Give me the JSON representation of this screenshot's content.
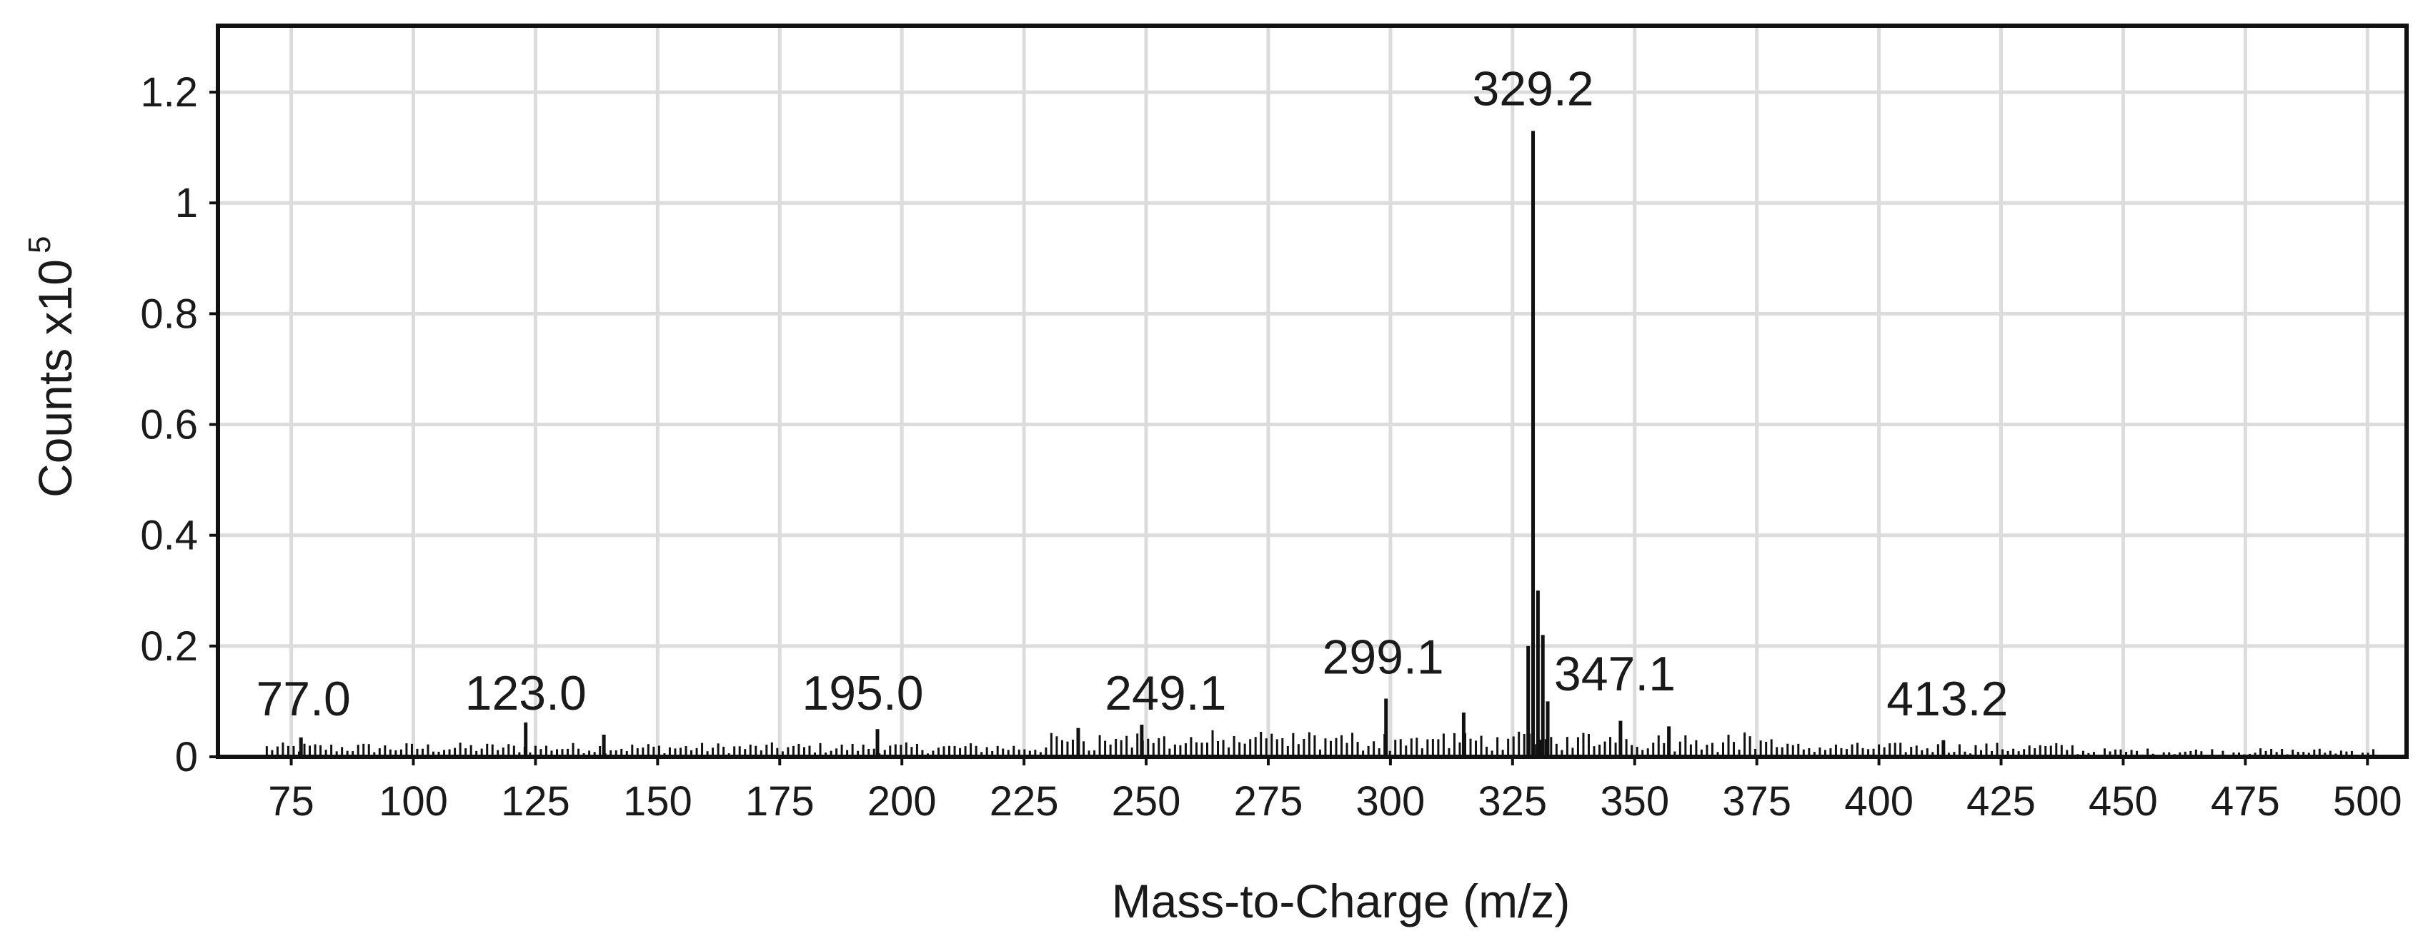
{
  "chart_data": {
    "type": "bar",
    "title": "",
    "xlabel": "Mass-to-Charge (m/z)",
    "ylabel": "Counts x10",
    "ylabel_exponent": "5",
    "xlim": [
      60,
      508
    ],
    "ylim": [
      0,
      1.32
    ],
    "x_ticks": [
      "75",
      "100",
      "125",
      "150",
      "175",
      "200",
      "225",
      "250",
      "275",
      "300",
      "325",
      "350",
      "375",
      "400",
      "425",
      "450",
      "475",
      "500"
    ],
    "y_ticks": [
      "0",
      "0.2",
      "0.4",
      "0.6",
      "0.8",
      "1",
      "1.2"
    ],
    "grid": true,
    "series": [
      {
        "x": [
          77.0,
          123.0,
          139.0,
          195.0,
          236.1,
          249.1,
          299.1,
          315.0,
          328.2,
          329.2,
          330.2,
          331.2,
          332.2,
          347.1,
          357.0,
          413.2
        ],
        "y": [
          0.035,
          0.062,
          0.04,
          0.05,
          0.052,
          0.058,
          0.105,
          0.08,
          0.2,
          1.13,
          0.3,
          0.22,
          0.1,
          0.065,
          0.055,
          0.03
        ]
      }
    ],
    "annotations": [
      {
        "text": "77.0",
        "x": 77.0,
        "y": 0.035
      },
      {
        "text": "123.0",
        "x": 123.0,
        "y": 0.062
      },
      {
        "text": "195.0",
        "x": 195.0,
        "y": 0.05
      },
      {
        "text": "249.1",
        "x": 249.1,
        "y": 0.058
      },
      {
        "text": "299.1",
        "x": 299.1,
        "y": 0.105
      },
      {
        "text": "329.2",
        "x": 329.2,
        "y": 1.13
      },
      {
        "text": "347.1",
        "x": 347.1,
        "y": 0.065
      },
      {
        "text": "413.2",
        "x": 413.2,
        "y": 0.03
      }
    ],
    "colors": {
      "bars": "#111111",
      "grid": "#dcdcdc",
      "background": "#ffffff"
    }
  }
}
